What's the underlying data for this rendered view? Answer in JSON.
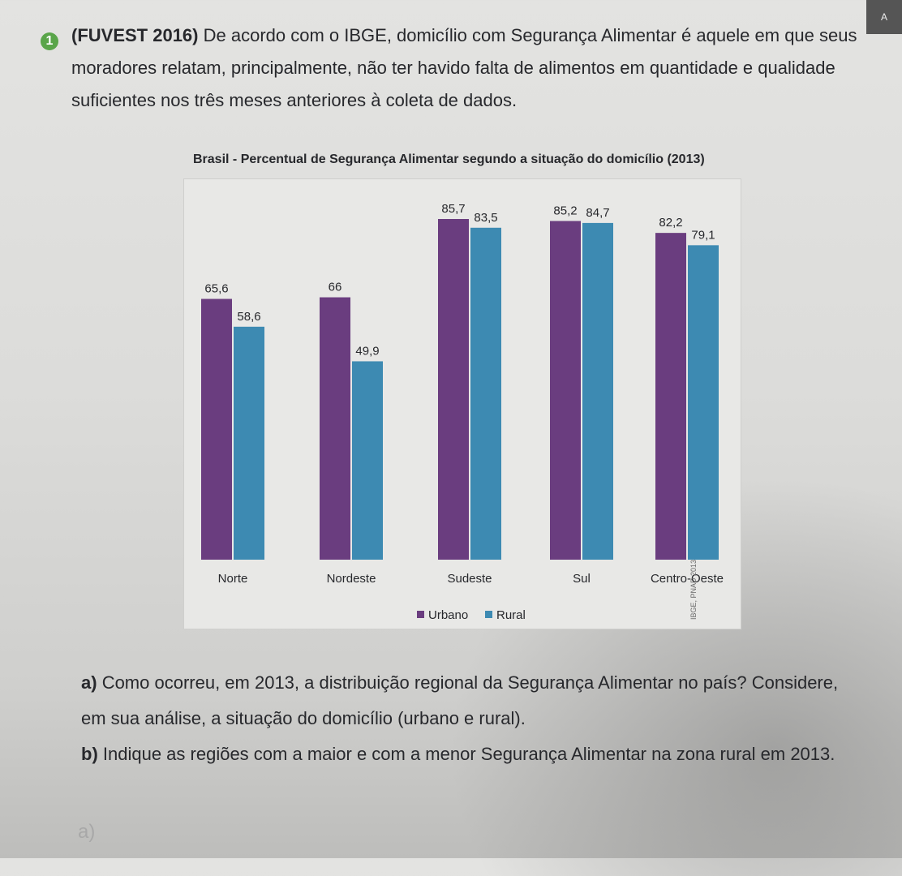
{
  "question": {
    "number": "1",
    "source_tag": "(FUVEST 2016)",
    "text": "De acordo com o IBGE, domicílio com Segurança Alimentar é aquele em que seus moradores relatam, principalmente, não ter havido falta de alimentos em quantidade e qualidade suficientes nos três meses anteriores à coleta de dados."
  },
  "page_tab": "A",
  "chart_source": "IBGE, PNAD 2013",
  "chart_data": {
    "type": "bar",
    "title": "Brasil - Percentual de Segurança Alimentar segundo a situação do domicílio (2013)",
    "categories": [
      "Norte",
      "Nordeste",
      "Sudeste",
      "Sul",
      "Centro-Oeste"
    ],
    "series": [
      {
        "name": "Urbano",
        "values": [
          65.6,
          66,
          85.7,
          85.2,
          82.2
        ],
        "labels": [
          "65,6",
          "66",
          "85,7",
          "85,2",
          "82,2"
        ],
        "color": "#6a3d7f"
      },
      {
        "name": "Rural",
        "values": [
          58.6,
          49.9,
          83.5,
          84.7,
          79.1
        ],
        "labels": [
          "58,6",
          "49,9",
          "83,5",
          "84,7",
          "79,1"
        ],
        "color": "#3d8ab2"
      }
    ],
    "ylim": [
      0,
      85.7
    ],
    "grid": false,
    "legend": "bottom-center"
  },
  "subquestions": [
    {
      "letter": "a)",
      "text": "Como ocorreu, em 2013, a distribuição regional da Segurança Alimentar no país? Considere, em sua análise, a situação do domicílio (urbano e rural)."
    },
    {
      "letter": "b)",
      "text": "Indique as regiões com a maior e com a menor Segurança Alimentar na zona rural em 2013."
    }
  ],
  "handwriting": "a)"
}
